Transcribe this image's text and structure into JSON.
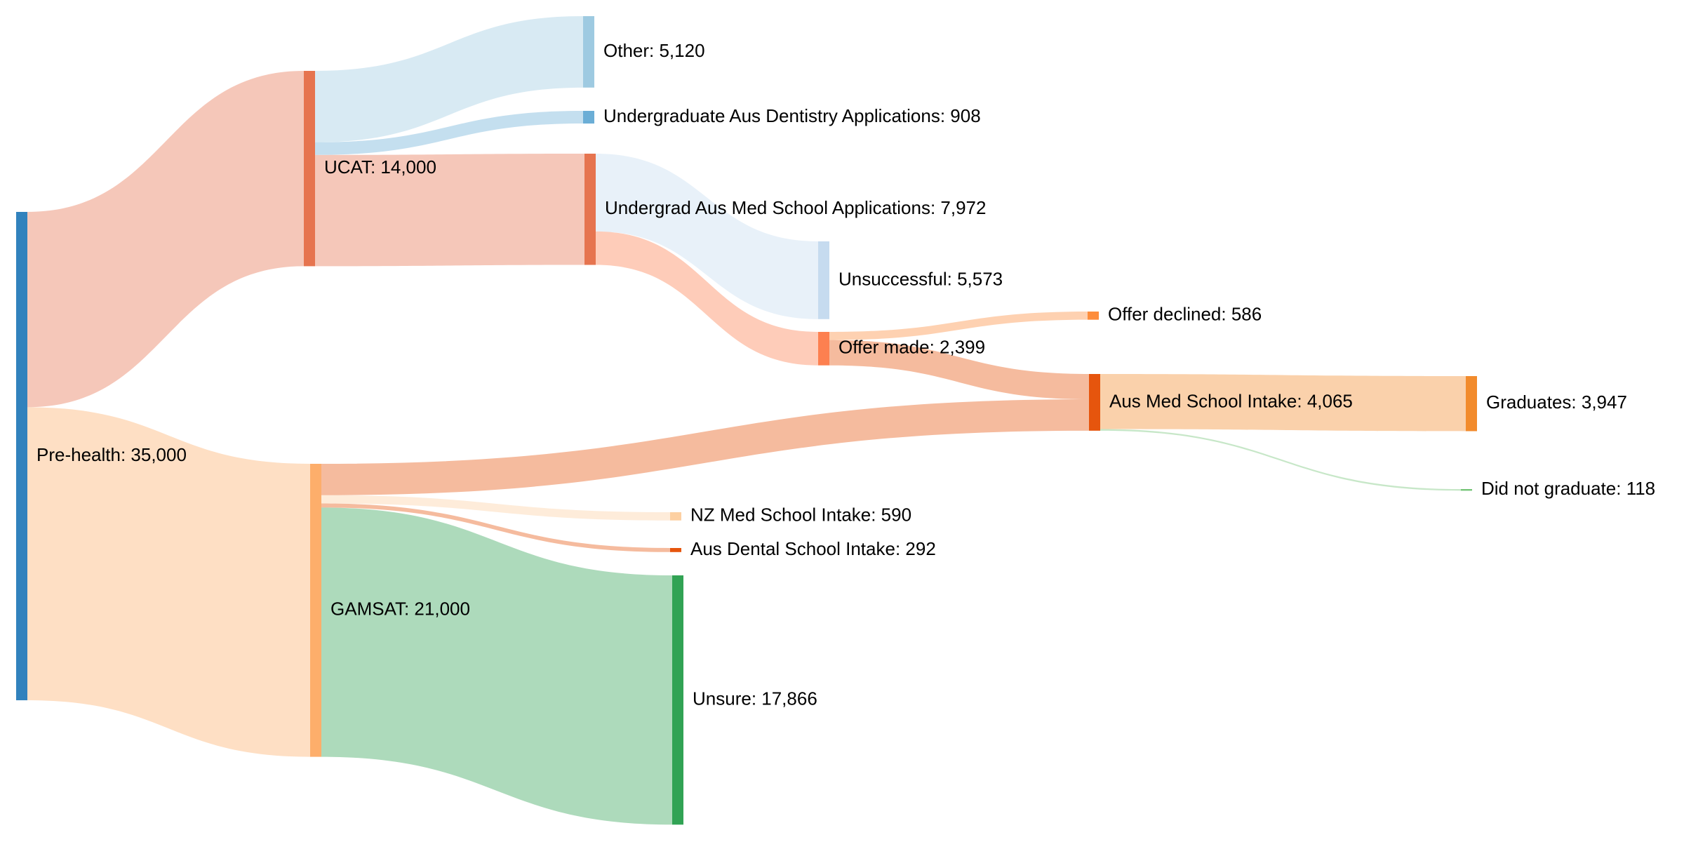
{
  "chart_data": {
    "type": "sankey",
    "title": "",
    "nodes": [
      {
        "id": "prehealth",
        "label": "Pre-health: 35,000",
        "name": "Pre-health",
        "value": 35000,
        "color": "#3182bd"
      },
      {
        "id": "ucat",
        "label": "UCAT: 14,000",
        "name": "UCAT",
        "value": 14000,
        "color": "#e6744f"
      },
      {
        "id": "gamsat",
        "label": "GAMSAT: 21,000",
        "name": "GAMSAT",
        "value": 21000,
        "color": "#fdae6b"
      },
      {
        "id": "other",
        "label": "Other: 5,120",
        "name": "Other",
        "value": 5120,
        "color": "#9ecae1"
      },
      {
        "id": "dentapps",
        "label": "Undergraduate Aus Dentistry Applications: 908",
        "name": "Undergraduate Aus Dentistry Applications",
        "value": 908,
        "color": "#6baed6"
      },
      {
        "id": "medapps",
        "label": "Undergrad Aus Med School Applications: 7,972",
        "name": "Undergrad Aus Med School Applications",
        "value": 7972,
        "color": "#e6744f"
      },
      {
        "id": "unsuccessful",
        "label": "Unsuccessful: 5,573",
        "name": "Unsuccessful",
        "value": 5573,
        "color": "#c6dbef"
      },
      {
        "id": "offer",
        "label": "Offer made: 2,399",
        "name": "Offer made",
        "value": 2399,
        "color": "#fd8050"
      },
      {
        "id": "declined",
        "label": "Offer declined: 586",
        "name": "Offer declined",
        "value": 586,
        "color": "#fd8d3c"
      },
      {
        "id": "ausmed",
        "label": "Aus Med School Intake: 4,065",
        "name": "Aus Med School Intake",
        "value": 4065,
        "color": "#e6550d"
      },
      {
        "id": "graduates",
        "label": "Graduates: 3,947",
        "name": "Graduates",
        "value": 3947,
        "color": "#f28b2c"
      },
      {
        "id": "dng",
        "label": "Did not graduate: 118",
        "name": "Did not graduate",
        "value": 118,
        "color": "#74c476"
      },
      {
        "id": "nzmed",
        "label": "NZ Med School Intake: 590",
        "name": "NZ Med School Intake",
        "value": 590,
        "color": "#fdd0a2"
      },
      {
        "id": "dental",
        "label": "Aus Dental School Intake: 292",
        "name": "Aus Dental School Intake",
        "value": 292,
        "color": "#e6550d"
      },
      {
        "id": "unsure",
        "label": "Unsure: 17,866",
        "name": "Unsure",
        "value": 17866,
        "color": "#31a354"
      }
    ],
    "links": [
      {
        "source": "prehealth",
        "target": "ucat",
        "value": 14000
      },
      {
        "source": "prehealth",
        "target": "gamsat",
        "value": 21000
      },
      {
        "source": "ucat",
        "target": "other",
        "value": 5120
      },
      {
        "source": "ucat",
        "target": "dentapps",
        "value": 908
      },
      {
        "source": "ucat",
        "target": "medapps",
        "value": 7972
      },
      {
        "source": "medapps",
        "target": "unsuccessful",
        "value": 5573
      },
      {
        "source": "medapps",
        "target": "offer",
        "value": 2399
      },
      {
        "source": "offer",
        "target": "declined",
        "value": 586
      },
      {
        "source": "offer",
        "target": "ausmed",
        "value": 1813
      },
      {
        "source": "gamsat",
        "target": "ausmed",
        "value": 2252
      },
      {
        "source": "gamsat",
        "target": "nzmed",
        "value": 590
      },
      {
        "source": "gamsat",
        "target": "dental",
        "value": 292
      },
      {
        "source": "gamsat",
        "target": "unsure",
        "value": 17866
      },
      {
        "source": "ausmed",
        "target": "graduates",
        "value": 3947
      },
      {
        "source": "ausmed",
        "target": "dng",
        "value": 118
      }
    ]
  }
}
